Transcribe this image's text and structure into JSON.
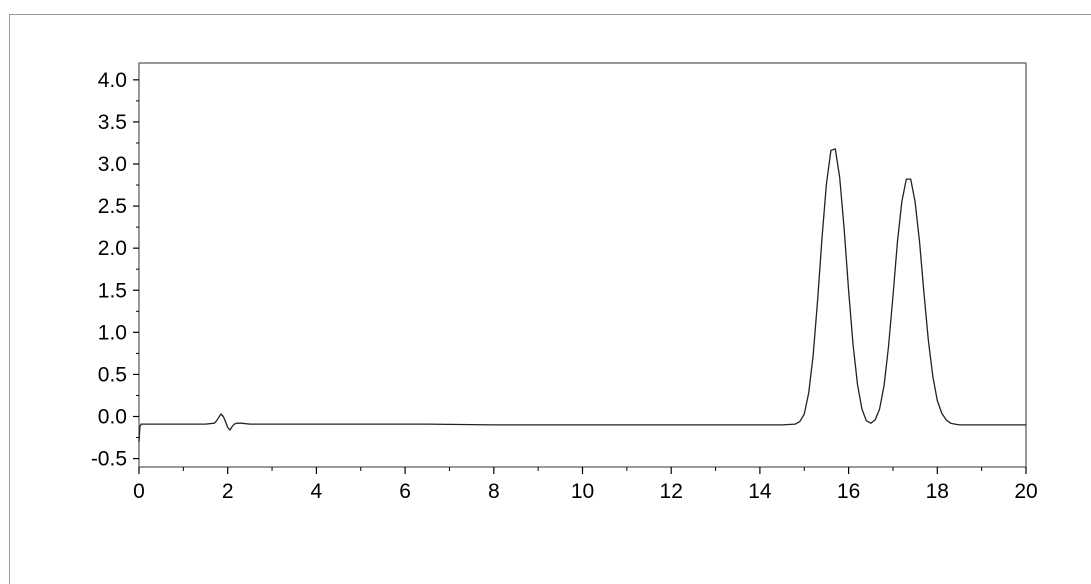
{
  "chart_data": {
    "type": "line",
    "title": "",
    "xlabel": "",
    "ylabel": "",
    "xlim": [
      0,
      20
    ],
    "ylim": [
      -0.6,
      4.2
    ],
    "grid": false,
    "x_ticks": [
      "0",
      "2",
      "4",
      "6",
      "8",
      "10",
      "12",
      "14",
      "16",
      "18",
      "20"
    ],
    "y_ticks": [
      "-0.5",
      "0.0",
      "0.5",
      "1.0",
      "1.5",
      "2.0",
      "2.5",
      "3.0",
      "3.5",
      "4.0"
    ],
    "series": [
      {
        "baseline": -0.1,
        "x": [
          0.0,
          0.02,
          0.05,
          0.1,
          0.5,
          1.0,
          1.5,
          1.7,
          1.75,
          1.8,
          1.85,
          1.9,
          1.95,
          2.0,
          2.05,
          2.1,
          2.15,
          2.2,
          2.3,
          2.5,
          3.0,
          5.0,
          6.5,
          8.0,
          10.0,
          12.0,
          13.0,
          14.0,
          14.5,
          14.8,
          14.9,
          15.0,
          15.1,
          15.2,
          15.3,
          15.4,
          15.5,
          15.6,
          15.7,
          15.8,
          15.9,
          16.0,
          16.1,
          16.2,
          16.3,
          16.4,
          16.5,
          16.6,
          16.7,
          16.8,
          16.9,
          17.0,
          17.1,
          17.2,
          17.3,
          17.4,
          17.5,
          17.6,
          17.7,
          17.8,
          17.9,
          18.0,
          18.1,
          18.2,
          18.3,
          18.4,
          18.5,
          18.6,
          18.8,
          19.0,
          19.5,
          20.0
        ],
        "y": [
          -0.3,
          -0.12,
          -0.09,
          -0.09,
          -0.09,
          -0.09,
          -0.09,
          -0.08,
          -0.05,
          -0.01,
          0.03,
          0.0,
          -0.06,
          -0.13,
          -0.16,
          -0.12,
          -0.09,
          -0.08,
          -0.08,
          -0.09,
          -0.09,
          -0.09,
          -0.09,
          -0.1,
          -0.1,
          -0.1,
          -0.1,
          -0.1,
          -0.1,
          -0.09,
          -0.06,
          0.03,
          0.28,
          0.72,
          1.38,
          2.12,
          2.76,
          3.16,
          3.18,
          2.84,
          2.22,
          1.5,
          0.86,
          0.38,
          0.09,
          -0.05,
          -0.08,
          -0.04,
          0.09,
          0.37,
          0.83,
          1.42,
          2.07,
          2.55,
          2.82,
          2.82,
          2.55,
          2.07,
          1.46,
          0.9,
          0.47,
          0.19,
          0.04,
          -0.04,
          -0.08,
          -0.09,
          -0.1,
          -0.1,
          -0.1,
          -0.1,
          -0.1,
          -0.1
        ]
      }
    ]
  }
}
